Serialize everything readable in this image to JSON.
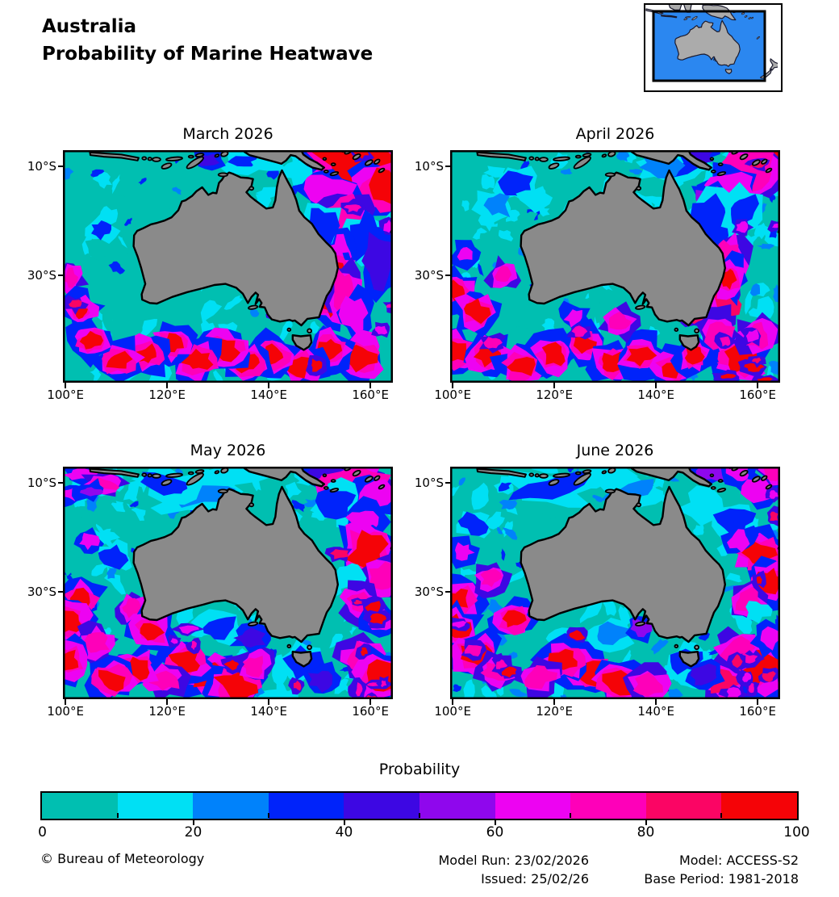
{
  "header": {
    "title_line1": "Australia",
    "title_line2": "Probability of Marine Heatwave"
  },
  "inset": {
    "description": "Australia locator map",
    "ocean_color": "#2b87f0",
    "land_color": "#ababab"
  },
  "palette": {
    "teal": "#00bfb1",
    "cyan": "#00e0f4",
    "lightblue": "#0082fb",
    "blue": "#0023fa",
    "indigo": "#3d07e3",
    "purple": "#8f07ed",
    "magenta": "#ed03f2",
    "pink": "#fe00b9",
    "deeppink": "#fb0564",
    "red": "#f50307",
    "land": "#8a8a8a",
    "coastline": "#000000"
  },
  "axes": {
    "x_tick_labels": [
      "100°E",
      "120°E",
      "140°E",
      "160°E"
    ],
    "x_tick_lons": [
      100,
      120,
      140,
      160
    ],
    "y_tick_labels": [
      "10°S",
      "30°S"
    ],
    "y_tick_lats": [
      10,
      30
    ],
    "lon_range": [
      99.5,
      164.4
    ],
    "lat_range": [
      7,
      49.6
    ]
  },
  "panels": [
    {
      "title": "March 2026",
      "seed": 101,
      "texture": {
        "cyan": 50,
        "lightblue": 12,
        "blue": 9,
        "warm": 8,
        "teal": 16
      },
      "features": [
        [
          158,
          9.5,
          8,
          4.5,
          "red"
        ],
        [
          163,
          14,
          4,
          3,
          "red"
        ],
        [
          152,
          15,
          4.5,
          4,
          "magenta"
        ],
        [
          155,
          19,
          4,
          3,
          "pink"
        ],
        [
          150,
          21,
          3,
          4,
          "blue"
        ],
        [
          159,
          23,
          3,
          4,
          "blue"
        ],
        [
          162,
          27,
          3,
          5,
          "indigo"
        ],
        [
          154,
          26,
          2,
          3,
          "magenta"
        ],
        [
          153.8,
          30,
          1.4,
          3.5,
          "red"
        ],
        [
          151.8,
          34.5,
          1.4,
          3,
          "red"
        ],
        [
          155,
          33,
          2,
          4,
          "pink"
        ],
        [
          157,
          37,
          2.5,
          3,
          "magenta"
        ],
        [
          158,
          45,
          3,
          2.5,
          "red"
        ],
        [
          152,
          43.5,
          2,
          1.8,
          "red"
        ],
        [
          146,
          46.5,
          2.5,
          1.8,
          "red"
        ],
        [
          141,
          44.5,
          2,
          1.6,
          "red"
        ],
        [
          136,
          46,
          2.2,
          1.6,
          "red"
        ],
        [
          131.5,
          43.5,
          2.4,
          1.8,
          "red"
        ],
        [
          126,
          45.5,
          2.6,
          1.8,
          "red"
        ],
        [
          121,
          42.5,
          2,
          1.5,
          "red"
        ],
        [
          116,
          44.5,
          2.2,
          1.6,
          "red"
        ],
        [
          110.5,
          45.5,
          2.4,
          1.7,
          "red"
        ],
        [
          105,
          42,
          2,
          1.5,
          "red"
        ],
        [
          101,
          30.5,
          1.3,
          1.6,
          "pink"
        ],
        [
          103,
          36.5,
          1.4,
          1.3,
          "red"
        ],
        [
          107,
          21.5,
          2,
          1.5,
          "blue"
        ],
        [
          135,
          9,
          3,
          1.2,
          "blue"
        ],
        [
          128,
          8.8,
          2,
          1,
          "indigo"
        ],
        [
          140,
          9.5,
          4,
          1.5,
          "cyan"
        ],
        [
          146,
          11,
          3,
          2,
          "cyan"
        ]
      ]
    },
    {
      "title": "April 2026",
      "seed": 202,
      "texture": {
        "cyan": 68,
        "lightblue": 26,
        "blue": 16,
        "warm": 12,
        "teal": 20
      },
      "features": [
        [
          145.5,
          9,
          5,
          2.5,
          "blue"
        ],
        [
          148.5,
          7.5,
          3,
          1.5,
          "indigo"
        ],
        [
          141,
          10,
          4,
          2,
          "lightblue"
        ],
        [
          163.5,
          7.5,
          3.5,
          2.5,
          "red"
        ],
        [
          159,
          10.5,
          5,
          3.5,
          "pink"
        ],
        [
          154.5,
          13.5,
          4.5,
          3,
          "magenta"
        ],
        [
          151.5,
          16.5,
          3.5,
          2.5,
          "purple"
        ],
        [
          150.5,
          21,
          4,
          5,
          "blue"
        ],
        [
          157,
          18,
          3,
          3,
          "blue"
        ],
        [
          112.5,
          13,
          3.5,
          2.5,
          "blue"
        ],
        [
          108.5,
          17,
          3,
          2,
          "lightblue"
        ],
        [
          116,
          16,
          3,
          2,
          "cyan"
        ],
        [
          154.5,
          27.5,
          2.2,
          4,
          "pink"
        ],
        [
          153.5,
          33.5,
          2.2,
          4,
          "deeppink"
        ],
        [
          154.2,
          30.5,
          1.4,
          2,
          "red"
        ],
        [
          152.5,
          41,
          2.6,
          3.5,
          "pink"
        ],
        [
          156.5,
          45,
          3,
          2.5,
          "red"
        ],
        [
          160,
          41,
          2.5,
          2,
          "pink"
        ],
        [
          101,
          33,
          2,
          1.8,
          "red"
        ],
        [
          104.5,
          36.5,
          2.3,
          1.8,
          "red"
        ],
        [
          100.5,
          44,
          2.6,
          2,
          "red"
        ],
        [
          107,
          44.5,
          2.4,
          1.8,
          "red"
        ],
        [
          113.5,
          46.5,
          2.6,
          1.8,
          "red"
        ],
        [
          120,
          44.5,
          2.4,
          1.8,
          "red"
        ],
        [
          126,
          42.5,
          2,
          1.6,
          "red"
        ],
        [
          131.5,
          46,
          2.6,
          1.8,
          "red"
        ],
        [
          137,
          44.5,
          2.4,
          1.7,
          "red"
        ],
        [
          143.5,
          47,
          2.2,
          1.5,
          "red"
        ],
        [
          147.5,
          44.5,
          1.6,
          1.4,
          "red"
        ],
        [
          102.5,
          26,
          1.4,
          1.3,
          "magenta"
        ],
        [
          110,
          30,
          1.6,
          1.4,
          "pink"
        ],
        [
          124,
          37.5,
          2,
          1.5,
          "magenta"
        ],
        [
          133,
          38.5,
          2,
          1.5,
          "pink"
        ]
      ]
    },
    {
      "title": "May 2026",
      "seed": 303,
      "texture": {
        "cyan": 80,
        "lightblue": 30,
        "blue": 20,
        "warm": 16,
        "teal": 22
      },
      "features": [
        [
          103,
          8.5,
          3,
          1,
          "magenta"
        ],
        [
          107.5,
          10,
          2.5,
          0.9,
          "pink"
        ],
        [
          101,
          12,
          2,
          0.9,
          "magenta"
        ],
        [
          105,
          11.5,
          2,
          0.8,
          "purple"
        ],
        [
          133,
          9,
          12,
          2,
          "cyan"
        ],
        [
          127,
          12,
          7,
          1.8,
          "lightblue"
        ],
        [
          120,
          10.5,
          5,
          1.5,
          "blue"
        ],
        [
          151,
          8.5,
          3,
          1.8,
          "purple"
        ],
        [
          157,
          9.5,
          6,
          3,
          "pink"
        ],
        [
          161.5,
          12.5,
          3.5,
          2.5,
          "magenta"
        ],
        [
          153.5,
          13.5,
          3.5,
          2.5,
          "blue"
        ],
        [
          158.5,
          17,
          3,
          2.5,
          "magenta"
        ],
        [
          159.5,
          22.5,
          3.5,
          3.5,
          "red"
        ],
        [
          162.5,
          27.5,
          3,
          2.5,
          "pink"
        ],
        [
          156,
          27,
          2.5,
          2.5,
          "cyan"
        ],
        [
          158,
          32,
          2.5,
          2,
          "pink"
        ],
        [
          162,
          35,
          2.5,
          2,
          "magenta"
        ],
        [
          158.5,
          42,
          3,
          2.5,
          "pink"
        ],
        [
          162,
          45.5,
          3,
          2.5,
          "red"
        ],
        [
          147,
          43,
          3.5,
          2.5,
          "blue"
        ],
        [
          150.5,
          46,
          2.5,
          1.8,
          "indigo"
        ],
        [
          128,
          45.5,
          3.5,
          2.2,
          "red"
        ],
        [
          133.5,
          47,
          3.5,
          2,
          "red"
        ],
        [
          123.5,
          42.5,
          2.8,
          1.8,
          "red"
        ],
        [
          137,
          43.5,
          2.2,
          1.8,
          "pink"
        ],
        [
          119.5,
          46,
          2.8,
          1.8,
          "pink"
        ],
        [
          114,
          44,
          2.4,
          1.8,
          "red"
        ],
        [
          109,
          46,
          2.6,
          1.8,
          "red"
        ],
        [
          103,
          31.5,
          2.3,
          1.8,
          "red"
        ],
        [
          100.5,
          35.5,
          2.6,
          2.2,
          "red"
        ],
        [
          106,
          39.5,
          2.3,
          1.8,
          "pink"
        ],
        [
          100.5,
          42.5,
          2,
          1.8,
          "red"
        ],
        [
          104.5,
          20.5,
          1.8,
          1.4,
          "magenta"
        ],
        [
          109.5,
          23.5,
          2.6,
          1.8,
          "blue"
        ],
        [
          130.5,
          36.5,
          3.5,
          1.8,
          "blue"
        ],
        [
          136.5,
          38.5,
          2.6,
          1.6,
          "indigo"
        ],
        [
          113,
          33,
          2,
          1.5,
          "pink"
        ],
        [
          117,
          37,
          2.2,
          1.6,
          "red"
        ]
      ]
    },
    {
      "title": "June 2026",
      "seed": 404,
      "texture": {
        "cyan": 80,
        "lightblue": 32,
        "blue": 22,
        "warm": 14,
        "teal": 22
      },
      "features": [
        [
          128,
          9,
          9,
          1.8,
          "cyan"
        ],
        [
          119,
          11,
          7,
          2,
          "blue"
        ],
        [
          135,
          11.5,
          5,
          1.5,
          "lightblue"
        ],
        [
          151,
          8,
          3,
          1.5,
          "purple"
        ],
        [
          156.5,
          8,
          2.2,
          1.4,
          "magenta"
        ],
        [
          160.5,
          11,
          3,
          2,
          "magenta"
        ],
        [
          163.5,
          8,
          2,
          1.5,
          "pink"
        ],
        [
          150,
          14.5,
          5,
          3,
          "cyan"
        ],
        [
          155.5,
          16.5,
          3.5,
          2.5,
          "blue"
        ],
        [
          160.5,
          23,
          3,
          2.2,
          "red"
        ],
        [
          162.5,
          28,
          2.8,
          2,
          "red"
        ],
        [
          158,
          31.5,
          2.4,
          2,
          "pink"
        ],
        [
          156.5,
          20.5,
          2,
          1.8,
          "magenta"
        ],
        [
          160,
          44,
          3.5,
          2.8,
          "red"
        ],
        [
          156,
          41,
          3,
          2.5,
          "pink"
        ],
        [
          162.5,
          38.5,
          2.4,
          1.8,
          "magenta"
        ],
        [
          153.5,
          46.5,
          3,
          2,
          "deeppink"
        ],
        [
          146,
          42.5,
          3,
          2.2,
          "blue"
        ],
        [
          149.5,
          45.5,
          2.6,
          1.8,
          "indigo"
        ],
        [
          127,
          44.5,
          3.5,
          2.2,
          "red"
        ],
        [
          133,
          46.5,
          3.2,
          2,
          "red"
        ],
        [
          138.5,
          47,
          2.6,
          1.8,
          "pink"
        ],
        [
          122,
          42.5,
          2.8,
          1.8,
          "red"
        ],
        [
          117,
          45.5,
          2.8,
          1.8,
          "pink"
        ],
        [
          101,
          31.5,
          2.3,
          1.8,
          "red"
        ],
        [
          100.5,
          36.5,
          2.6,
          2,
          "red"
        ],
        [
          104.5,
          41.5,
          2.8,
          2,
          "red"
        ],
        [
          108.5,
          44.5,
          2.4,
          1.8,
          "pink"
        ],
        [
          104,
          17.5,
          2.6,
          1.8,
          "blue"
        ],
        [
          102,
          22.5,
          1.8,
          1.4,
          "magenta"
        ],
        [
          107.5,
          27.5,
          1.8,
          1.4,
          "pink"
        ],
        [
          131,
          37.5,
          3.5,
          1.8,
          "lightblue"
        ],
        [
          137,
          36.5,
          1.8,
          1.4,
          "purple"
        ],
        [
          112,
          35,
          2,
          1.5,
          "red"
        ],
        [
          160,
          33.5,
          2.2,
          1.8,
          "cyan"
        ]
      ]
    }
  ],
  "legend": {
    "title": "Probability",
    "segment_colors": [
      "teal",
      "cyan",
      "lightblue",
      "blue",
      "indigo",
      "purple",
      "magenta",
      "pink",
      "deeppink",
      "red"
    ],
    "tick_labels": [
      "0",
      "20",
      "40",
      "60",
      "80",
      "100"
    ],
    "tick_values": [
      0,
      20,
      40,
      60,
      80,
      100
    ],
    "range": [
      0,
      100
    ]
  },
  "footer": {
    "copyright": "© Bureau of Meteorology",
    "model_run": "Model Run: 23/02/2026",
    "issued": "Issued: 25/02/26",
    "model": "Model: ACCESS-S2",
    "base_period": "Base Period: 1981-2018"
  }
}
